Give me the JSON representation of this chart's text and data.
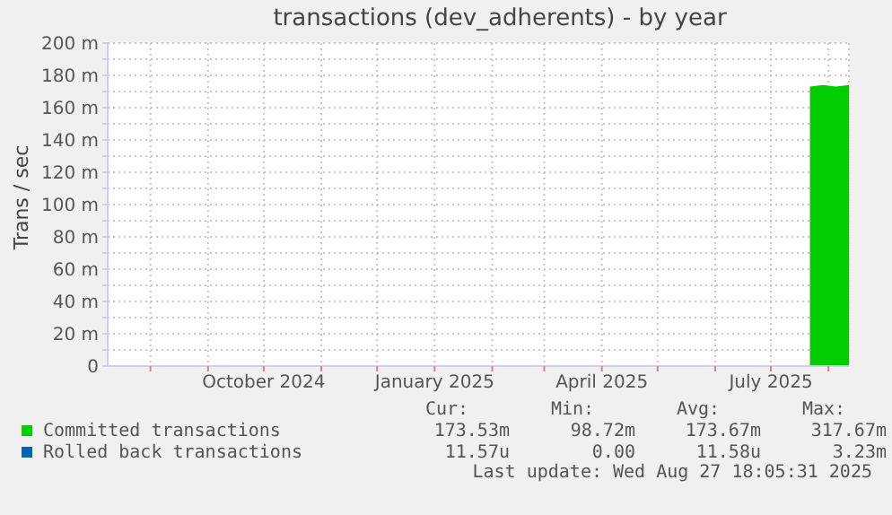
{
  "chart_data": {
    "type": "area",
    "title": "transactions (dev_adherents) - by year",
    "ylabel": "Trans / sec",
    "grid": true,
    "legend": "bottom",
    "xlim": [
      "2024-07-09",
      "2025-08-12"
    ],
    "xticks": [
      {
        "value": "2024-08-01",
        "label": null
      },
      {
        "value": "2024-09-01",
        "label": null
      },
      {
        "value": "2024-10-01",
        "label": "October 2024"
      },
      {
        "value": "2024-11-01",
        "label": null
      },
      {
        "value": "2024-12-01",
        "label": null
      },
      {
        "value": "2025-01-01",
        "label": "January 2025"
      },
      {
        "value": "2025-02-01",
        "label": null
      },
      {
        "value": "2025-03-01",
        "label": null
      },
      {
        "value": "2025-04-01",
        "label": "April 2025"
      },
      {
        "value": "2025-05-01",
        "label": null
      },
      {
        "value": "2025-06-01",
        "label": null
      },
      {
        "value": "2025-07-01",
        "label": "July 2025"
      },
      {
        "value": "2025-08-01",
        "label": null
      }
    ],
    "ylim": [
      0,
      200
    ],
    "yticks": [
      0,
      {
        "value": 10,
        "label": null
      },
      {
        "value": 20,
        "label": "20 m"
      },
      {
        "value": 30,
        "label": null
      },
      {
        "value": 40,
        "label": "40 m"
      },
      {
        "value": 50,
        "label": null
      },
      {
        "value": 60,
        "label": "60 m"
      },
      {
        "value": 70,
        "label": null
      },
      {
        "value": 80,
        "label": "80 m"
      },
      {
        "value": 90,
        "label": null
      },
      {
        "value": 100,
        "label": "100 m"
      },
      {
        "value": 110,
        "label": null
      },
      {
        "value": 120,
        "label": "120 m"
      },
      {
        "value": 130,
        "label": null
      },
      {
        "value": 140,
        "label": "140 m"
      },
      {
        "value": 150,
        "label": null
      },
      {
        "value": 160,
        "label": "160 m"
      },
      {
        "value": 170,
        "label": null
      },
      {
        "value": 180,
        "label": "180 m"
      },
      {
        "value": 190,
        "label": null
      },
      {
        "value": 200,
        "label": "200 m"
      }
    ],
    "x": [
      "2025-07-22",
      "2025-07-29",
      "2025-08-05",
      "2025-08-12"
    ],
    "series": [
      {
        "name": "Committed transactions",
        "color": "#00cc00",
        "values": [
          173,
          174,
          173,
          174
        ]
      },
      {
        "name": "Rolled back transactions",
        "color": "#0066b3",
        "values": [
          null,
          null,
          null,
          null
        ]
      }
    ],
    "annotations": [
      "Cur:",
      "Min:",
      "Avg:",
      "Max:",
      "173.53m",
      "98.72m",
      "173.67m",
      "317.67m",
      "11.57u",
      "0.00",
      "11.58u",
      "3.23m",
      "Last update: Wed Aug 27 18:05:31 2025"
    ]
  }
}
